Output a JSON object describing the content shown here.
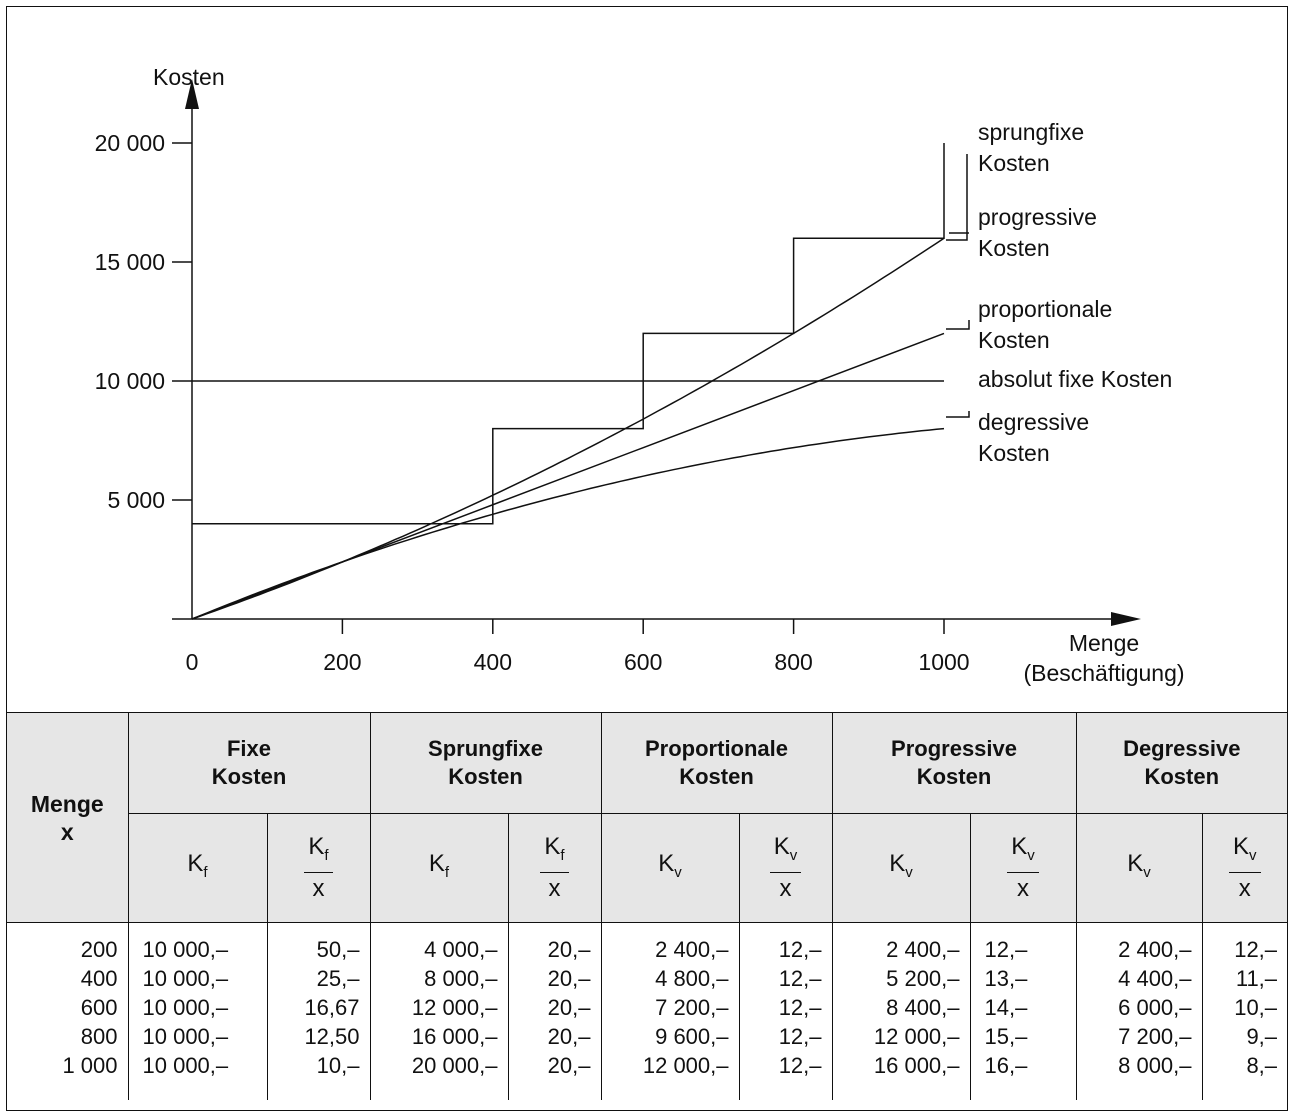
{
  "chart_data": {
    "type": "line",
    "ylabel": "Kosten",
    "xlabel": [
      "Menge",
      "(Beschäftigung)"
    ],
    "xlim": [
      0,
      1000
    ],
    "ylim": [
      0,
      20000
    ],
    "x_ticks": [
      0,
      200,
      400,
      600,
      800,
      1000
    ],
    "x_tick_labels": [
      "0",
      "200",
      "400",
      "600",
      "800",
      "1000"
    ],
    "y_ticks": [
      5000,
      10000,
      15000,
      20000
    ],
    "y_tick_labels": [
      "5 000",
      "10 000",
      "15 000",
      "20 000"
    ],
    "series": [
      {
        "name": "sprungfixe Kosten",
        "style": "step",
        "x": [
          0,
          400,
          400,
          600,
          600,
          800,
          800,
          1000,
          1000
        ],
        "y": [
          4000,
          4000,
          8000,
          8000,
          12000,
          12000,
          16000,
          16000,
          20000
        ]
      },
      {
        "name": "progressive Kosten",
        "x": [
          0,
          200,
          400,
          600,
          800,
          1000
        ],
        "y": [
          0,
          2400,
          5200,
          8400,
          12000,
          16000
        ]
      },
      {
        "name": "proportionale Kosten",
        "x": [
          0,
          200,
          400,
          600,
          800,
          1000
        ],
        "y": [
          0,
          2400,
          4800,
          7200,
          9600,
          12000
        ]
      },
      {
        "name": "absolut fixe Kosten",
        "x": [
          0,
          1000
        ],
        "y": [
          10000,
          10000
        ]
      },
      {
        "name": "degressive Kosten",
        "x": [
          0,
          200,
          400,
          600,
          800,
          1000
        ],
        "y": [
          0,
          2400,
          4400,
          6000,
          7200,
          8000
        ]
      }
    ],
    "annotations": [
      {
        "series": "sprungfixe Kosten",
        "lines": [
          "sprungfixe",
          "Kosten"
        ]
      },
      {
        "series": "progressive Kosten",
        "lines": [
          "progressive",
          "Kosten"
        ]
      },
      {
        "series": "proportionale Kosten",
        "lines": [
          "proportionale",
          "Kosten"
        ]
      },
      {
        "series": "absolut fixe Kosten",
        "lines": [
          "absolut fixe Kosten"
        ]
      },
      {
        "series": "degressive Kosten",
        "lines": [
          "degressive",
          "Kosten"
        ]
      }
    ]
  },
  "table": {
    "menge_header": "Menge",
    "menge_var": "x",
    "groups": [
      {
        "line1": "Fixe",
        "line2": "Kosten"
      },
      {
        "line1": "Sprungfixe",
        "line2": "Kosten"
      },
      {
        "line1": "Proportionale",
        "line2": "Kosten"
      },
      {
        "line1": "Progressive",
        "line2": "Kosten"
      },
      {
        "line1": "Degressive",
        "line2": "Kosten"
      }
    ],
    "symbols": {
      "K": "K",
      "f": "f",
      "v": "v",
      "x": "x"
    },
    "rows": [
      {
        "menge": "200",
        "cells": [
          "10 000,–",
          "50,–",
          "4 000,–",
          "20,–",
          "2 400,–",
          "12,–",
          "2 400,–",
          "12,–",
          "2 400,–",
          "12,–"
        ]
      },
      {
        "menge": "400",
        "cells": [
          "10 000,–",
          "25,–",
          "8 000,–",
          "20,–",
          "4 800,–",
          "12,–",
          "5 200,–",
          "13,–",
          "4 400,–",
          "11,–"
        ]
      },
      {
        "menge": "600",
        "cells": [
          "10 000,–",
          "16,67",
          "12 000,–",
          "20,–",
          "7 200,–",
          "12,–",
          "8 400,–",
          "14,–",
          "6 000,–",
          "10,–"
        ]
      },
      {
        "menge": "800",
        "cells": [
          "10 000,–",
          "12,50",
          "16 000,–",
          "20,–",
          "9 600,–",
          "12,–",
          "12 000,–",
          "15,–",
          "7 200,–",
          "9,–"
        ]
      },
      {
        "menge": "1 000",
        "cells": [
          "10 000,–",
          "10,–",
          "20 000,–",
          "20,–",
          "12 000,–",
          "12,–",
          "16 000,–",
          "16,–",
          "8 000,–",
          "8,–"
        ]
      }
    ]
  }
}
